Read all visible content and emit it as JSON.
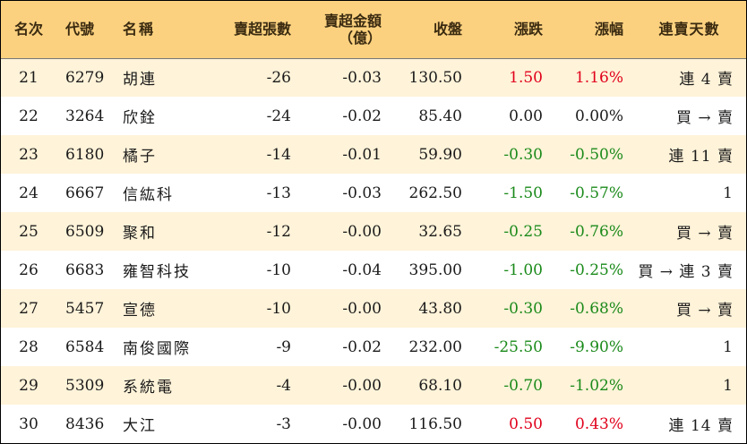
{
  "headers": {
    "rank": "名次",
    "code": "代號",
    "name": "名稱",
    "net_sell_lots": "賣超張數",
    "net_sell_amount": "賣超金額",
    "net_sell_amount_unit": "（億）",
    "close": "收盤",
    "change": "漲跌",
    "change_pct": "漲幅",
    "consecutive_days": "連賣天數"
  },
  "colors": {
    "header_bg": "#fbd17f",
    "stripe_bg": "#fff3d9",
    "up": "#e0001b",
    "down": "#1a8a1a",
    "flat": "#1a1a1a"
  },
  "rows": [
    {
      "rank": "21",
      "code": "6279",
      "name": "胡連",
      "net_sell_lots": "-26",
      "net_sell_amount": "-0.03",
      "close": "130.50",
      "change": "1.50",
      "change_pct": "1.16%",
      "trend": "up",
      "consecutive_days": "連 4 賣"
    },
    {
      "rank": "22",
      "code": "3264",
      "name": "欣銓",
      "net_sell_lots": "-24",
      "net_sell_amount": "-0.02",
      "close": "85.40",
      "change": "0.00",
      "change_pct": "0.00%",
      "trend": "flat",
      "consecutive_days": "買 → 賣"
    },
    {
      "rank": "23",
      "code": "6180",
      "name": "橘子",
      "net_sell_lots": "-14",
      "net_sell_amount": "-0.01",
      "close": "59.90",
      "change": "-0.30",
      "change_pct": "-0.50%",
      "trend": "down",
      "consecutive_days": "連 11 賣"
    },
    {
      "rank": "24",
      "code": "6667",
      "name": "信紘科",
      "net_sell_lots": "-13",
      "net_sell_amount": "-0.03",
      "close": "262.50",
      "change": "-1.50",
      "change_pct": "-0.57%",
      "trend": "down",
      "consecutive_days": "1"
    },
    {
      "rank": "25",
      "code": "6509",
      "name": "聚和",
      "net_sell_lots": "-12",
      "net_sell_amount": "-0.00",
      "close": "32.65",
      "change": "-0.25",
      "change_pct": "-0.76%",
      "trend": "down",
      "consecutive_days": "買 → 賣"
    },
    {
      "rank": "26",
      "code": "6683",
      "name": "雍智科技",
      "net_sell_lots": "-10",
      "net_sell_amount": "-0.04",
      "close": "395.00",
      "change": "-1.00",
      "change_pct": "-0.25%",
      "trend": "down",
      "consecutive_days": "買 → 連 3 賣"
    },
    {
      "rank": "27",
      "code": "5457",
      "name": "宣德",
      "net_sell_lots": "-10",
      "net_sell_amount": "-0.00",
      "close": "43.80",
      "change": "-0.30",
      "change_pct": "-0.68%",
      "trend": "down",
      "consecutive_days": "買 → 賣"
    },
    {
      "rank": "28",
      "code": "6584",
      "name": "南俊國際",
      "net_sell_lots": "-9",
      "net_sell_amount": "-0.02",
      "close": "232.00",
      "change": "-25.50",
      "change_pct": "-9.90%",
      "trend": "down",
      "consecutive_days": "1"
    },
    {
      "rank": "29",
      "code": "5309",
      "name": "系統電",
      "net_sell_lots": "-4",
      "net_sell_amount": "-0.00",
      "close": "68.10",
      "change": "-0.70",
      "change_pct": "-1.02%",
      "trend": "down",
      "consecutive_days": "1"
    },
    {
      "rank": "30",
      "code": "8436",
      "name": "大江",
      "net_sell_lots": "-3",
      "net_sell_amount": "-0.00",
      "close": "116.50",
      "change": "0.50",
      "change_pct": "0.43%",
      "trend": "up",
      "consecutive_days": "連 14 賣"
    }
  ]
}
